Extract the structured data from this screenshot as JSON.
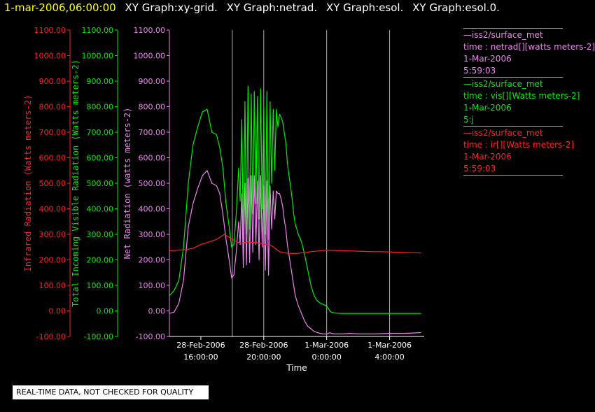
{
  "header": {
    "timestamp": "1-mar-2006,06:00:00",
    "titles": [
      "XY Graph:xy-grid.",
      "XY Graph:netrad.",
      "XY Graph:esol.",
      "XY Graph:esol.0."
    ]
  },
  "notice": "REAL-TIME DATA, NOT CHECKED FOR QUALITY",
  "colors": {
    "ir": "#ff2020",
    "vis": "#00ee00",
    "net": "#ee82ee",
    "grid": "#ffffff",
    "axis": "#ffffff"
  },
  "legend": [
    {
      "source": "iss2/surface_met",
      "var": "time : netrad[][watts meters-2]",
      "date": "1-Mar-2006",
      "time": "5:59:03",
      "color": "#ee82ee"
    },
    {
      "source": "iss2/surface_met",
      "var": "time : vis[][Watts meters-2]",
      "date": "1-Mar-2006",
      "time": "5:j",
      "color": "#00ee00"
    },
    {
      "source": "iss2/surface_met",
      "var": "time : ir[][Watts meters-2]",
      "date": "1-Mar-2006",
      "time": "5:59:03",
      "color": "#ff2020"
    }
  ],
  "chart_data": {
    "type": "line",
    "xlabel": "Time",
    "xlim": [
      14,
      30.2
    ],
    "xticks": [
      {
        "value": 16,
        "line1": "28-Feb-2006",
        "line2": "16:00:00"
      },
      {
        "value": 20,
        "line1": "28-Feb-2006",
        "line2": "20:00:00"
      },
      {
        "value": 24,
        "line1": "1-Mar-2006",
        "line2": "0:00:00"
      },
      {
        "value": 28,
        "line1": "1-Mar-2006",
        "line2": "4:00:00"
      }
    ],
    "vgrid": [
      18,
      20,
      24,
      28
    ],
    "axes": [
      {
        "id": "ir",
        "label": "Infrared Radiation (Watts meters-2)",
        "ylim": [
          -100,
          1100
        ],
        "color": "#ff2020"
      },
      {
        "id": "vis",
        "label": "Total Incoming Visible Radiation (Watts meters-2)",
        "ylim": [
          -100,
          1100
        ],
        "color": "#00ee00"
      },
      {
        "id": "net",
        "label": "Net Radiation (watts meters-2)",
        "ylim": [
          -100,
          1100
        ],
        "color": "#ee82ee"
      }
    ],
    "yticks": [
      "-100.00",
      "0.00",
      "100.00",
      "200.00",
      "300.00",
      "400.00",
      "500.00",
      "600.00",
      "700.00",
      "800.00",
      "900.00",
      "1000.00",
      "1100.00"
    ],
    "series": [
      {
        "id": "vis",
        "axis": "vis",
        "color": "#00ee00",
        "x": [
          14.0,
          14.3,
          14.6,
          14.9,
          15.2,
          15.5,
          15.8,
          16.1,
          16.4,
          16.7,
          17.0,
          17.2,
          17.4,
          17.6,
          17.8,
          17.95,
          18.1,
          18.25,
          18.4,
          18.5,
          18.6,
          18.7,
          18.8,
          18.9,
          19.0,
          19.1,
          19.2,
          19.3,
          19.4,
          19.5,
          19.6,
          19.7,
          19.8,
          19.9,
          20.0,
          20.1,
          20.2,
          20.3,
          20.4,
          20.5,
          20.6,
          20.7,
          20.8,
          20.9,
          21.0,
          21.1,
          21.2,
          21.3,
          21.4,
          21.5,
          21.6,
          21.7,
          21.8,
          21.9,
          22.0,
          22.2,
          22.4,
          22.6,
          22.8,
          23.0,
          23.2,
          23.4,
          23.6,
          23.8,
          24.0,
          24.1,
          24.2,
          24.3,
          24.5,
          25.0,
          25.5,
          26.0,
          27.0,
          28.0,
          29.0,
          30.0
        ],
        "y": [
          60,
          80,
          120,
          250,
          500,
          650,
          720,
          780,
          790,
          700,
          690,
          640,
          560,
          420,
          330,
          250,
          260,
          380,
          560,
          430,
          750,
          260,
          820,
          300,
          880,
          320,
          850,
          380,
          860,
          420,
          840,
          360,
          870,
          400,
          800,
          300,
          860,
          280,
          820,
          500,
          790,
          550,
          790,
          720,
          770,
          760,
          740,
          700,
          660,
          580,
          530,
          490,
          440,
          380,
          340,
          300,
          270,
          220,
          160,
          100,
          60,
          40,
          30,
          25,
          20,
          10,
          0,
          -5,
          -8,
          -10,
          -10,
          -10,
          -10,
          -10,
          -10,
          -10
        ]
      },
      {
        "id": "net",
        "axis": "net",
        "color": "#ee82ee",
        "x": [
          14.0,
          14.3,
          14.6,
          14.9,
          15.2,
          15.5,
          15.8,
          16.1,
          16.4,
          16.7,
          17.0,
          17.2,
          17.4,
          17.6,
          17.8,
          17.95,
          18.1,
          18.25,
          18.4,
          18.5,
          18.6,
          18.7,
          18.8,
          18.9,
          19.0,
          19.1,
          19.2,
          19.3,
          19.4,
          19.5,
          19.6,
          19.7,
          19.8,
          19.9,
          20.0,
          20.1,
          20.2,
          20.3,
          20.4,
          20.5,
          20.6,
          20.7,
          20.8,
          20.9,
          21.0,
          21.1,
          21.2,
          21.3,
          21.4,
          21.5,
          21.6,
          21.7,
          21.8,
          21.9,
          22.0,
          22.2,
          22.4,
          22.6,
          22.8,
          23.0,
          23.2,
          23.4,
          23.6,
          23.8,
          24.0,
          24.1,
          24.2,
          24.3,
          24.5,
          25.0,
          25.5,
          26.0,
          27.0,
          28.0,
          29.0,
          30.0
        ],
        "y": [
          -10,
          -5,
          30,
          120,
          330,
          420,
          480,
          530,
          550,
          500,
          490,
          460,
          380,
          280,
          200,
          130,
          140,
          230,
          350,
          260,
          460,
          170,
          500,
          180,
          520,
          190,
          530,
          230,
          530,
          260,
          510,
          200,
          530,
          250,
          490,
          160,
          510,
          140,
          490,
          320,
          470,
          360,
          470,
          460,
          460,
          440,
          410,
          360,
          320,
          260,
          220,
          180,
          140,
          100,
          60,
          20,
          -10,
          -40,
          -60,
          -70,
          -80,
          -85,
          -88,
          -90,
          -90,
          -88,
          -85,
          -88,
          -90,
          -90,
          -88,
          -90,
          -90,
          -88,
          -88,
          -85
        ]
      },
      {
        "id": "ir",
        "axis": "ir",
        "color": "#ff2020",
        "x": [
          14.0,
          14.5,
          15.0,
          15.5,
          16.0,
          16.5,
          17.0,
          17.5,
          18.0,
          18.5,
          19.0,
          19.5,
          20.0,
          20.5,
          21.0,
          21.5,
          22.0,
          22.5,
          23.0,
          23.5,
          24.0,
          24.5,
          25.0,
          25.5,
          26.0,
          26.5,
          27.0,
          27.5,
          28.0,
          28.5,
          29.0,
          29.5,
          30.0
        ],
        "y": [
          235,
          238,
          240,
          245,
          260,
          270,
          280,
          300,
          280,
          265,
          270,
          268,
          262,
          255,
          232,
          226,
          225,
          228,
          232,
          235,
          238,
          237,
          236,
          235,
          234,
          233,
          232,
          232,
          231,
          230,
          229,
          228,
          227
        ]
      }
    ]
  }
}
